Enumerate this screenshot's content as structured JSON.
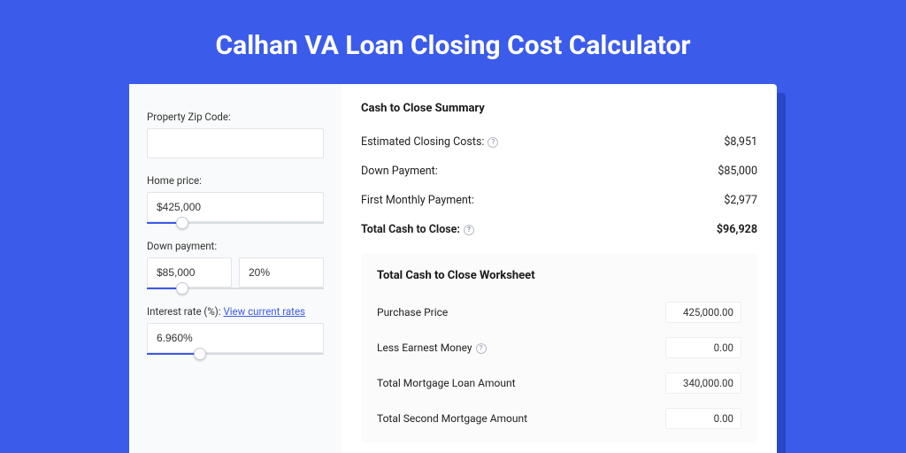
{
  "page": {
    "title": "Calhan VA Loan Closing Cost Calculator",
    "background_color": "#3B5BEB",
    "accent_color": "#3B5BEB"
  },
  "left_panel": {
    "zip": {
      "label": "Property Zip Code:",
      "value": ""
    },
    "home_price": {
      "label": "Home price:",
      "value": "$425,000",
      "slider_pct": 20
    },
    "down_payment": {
      "label": "Down payment:",
      "value": "$85,000",
      "pct": "20%",
      "slider_pct": 20
    },
    "interest_rate": {
      "label": "Interest rate (%):",
      "link_text": "View current rates",
      "value": "6.960%",
      "slider_pct": 30
    }
  },
  "summary": {
    "title": "Cash to Close Summary",
    "rows": [
      {
        "label": "Estimated Closing Costs:",
        "help": true,
        "value": "$8,951",
        "bold": false
      },
      {
        "label": "Down Payment:",
        "help": false,
        "value": "$85,000",
        "bold": false
      },
      {
        "label": "First Monthly Payment:",
        "help": false,
        "value": "$2,977",
        "bold": false
      },
      {
        "label": "Total Cash to Close:",
        "help": true,
        "value": "$96,928",
        "bold": true
      }
    ]
  },
  "worksheet": {
    "title": "Total Cash to Close Worksheet",
    "rows": [
      {
        "label": "Purchase Price",
        "help": false,
        "value": "425,000.00"
      },
      {
        "label": "Less Earnest Money",
        "help": true,
        "value": "0.00"
      },
      {
        "label": "Total Mortgage Loan Amount",
        "help": false,
        "value": "340,000.00"
      },
      {
        "label": "Total Second Mortgage Amount",
        "help": false,
        "value": "0.00"
      }
    ]
  }
}
